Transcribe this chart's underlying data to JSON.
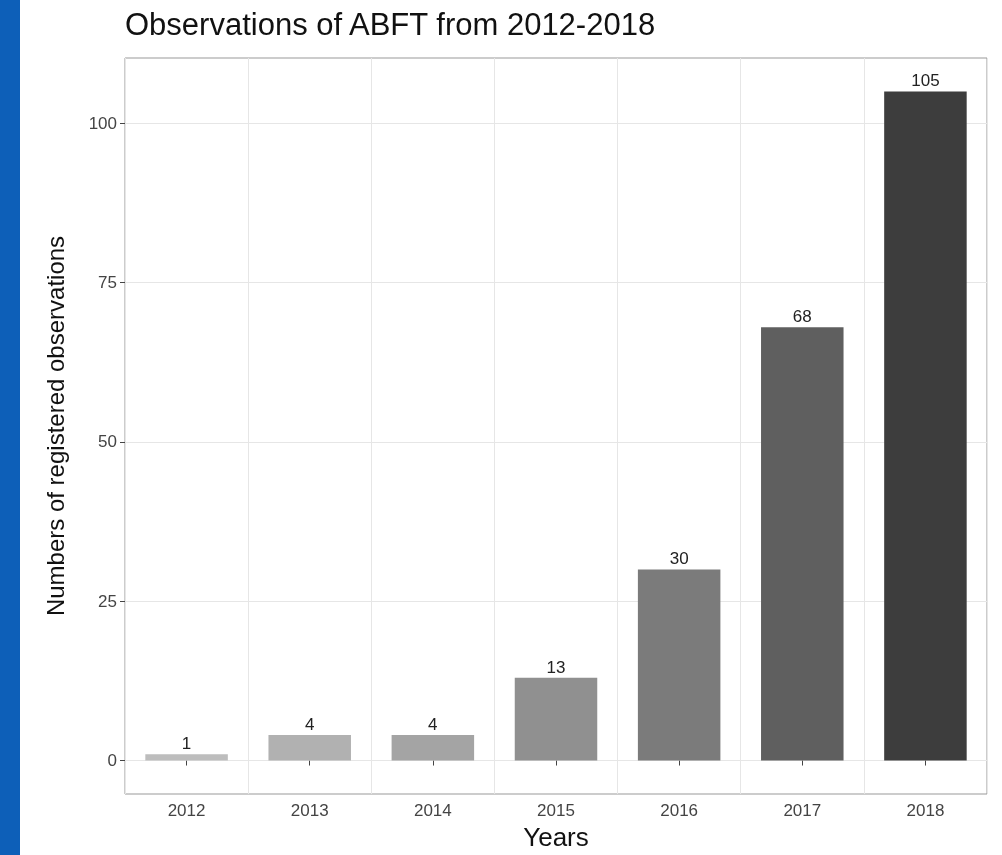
{
  "chart_data": {
    "type": "bar",
    "title": "Observations of ABFT from 2012-2018",
    "xlabel": "Years",
    "ylabel": "Numbers of registered observations",
    "categories": [
      "2012",
      "2013",
      "2014",
      "2015",
      "2016",
      "2017",
      "2018"
    ],
    "values": [
      1,
      4,
      4,
      13,
      30,
      68,
      105
    ],
    "colors": [
      "#bdbdbd",
      "#b1b1b1",
      "#a4a4a4",
      "#909090",
      "#7b7b7b",
      "#5f5f5f",
      "#3d3d3d"
    ],
    "ylim": [
      -5.25,
      110.25
    ],
    "yticks": [
      0,
      25,
      50,
      75,
      100
    ],
    "grid": true,
    "data_labels": true
  }
}
